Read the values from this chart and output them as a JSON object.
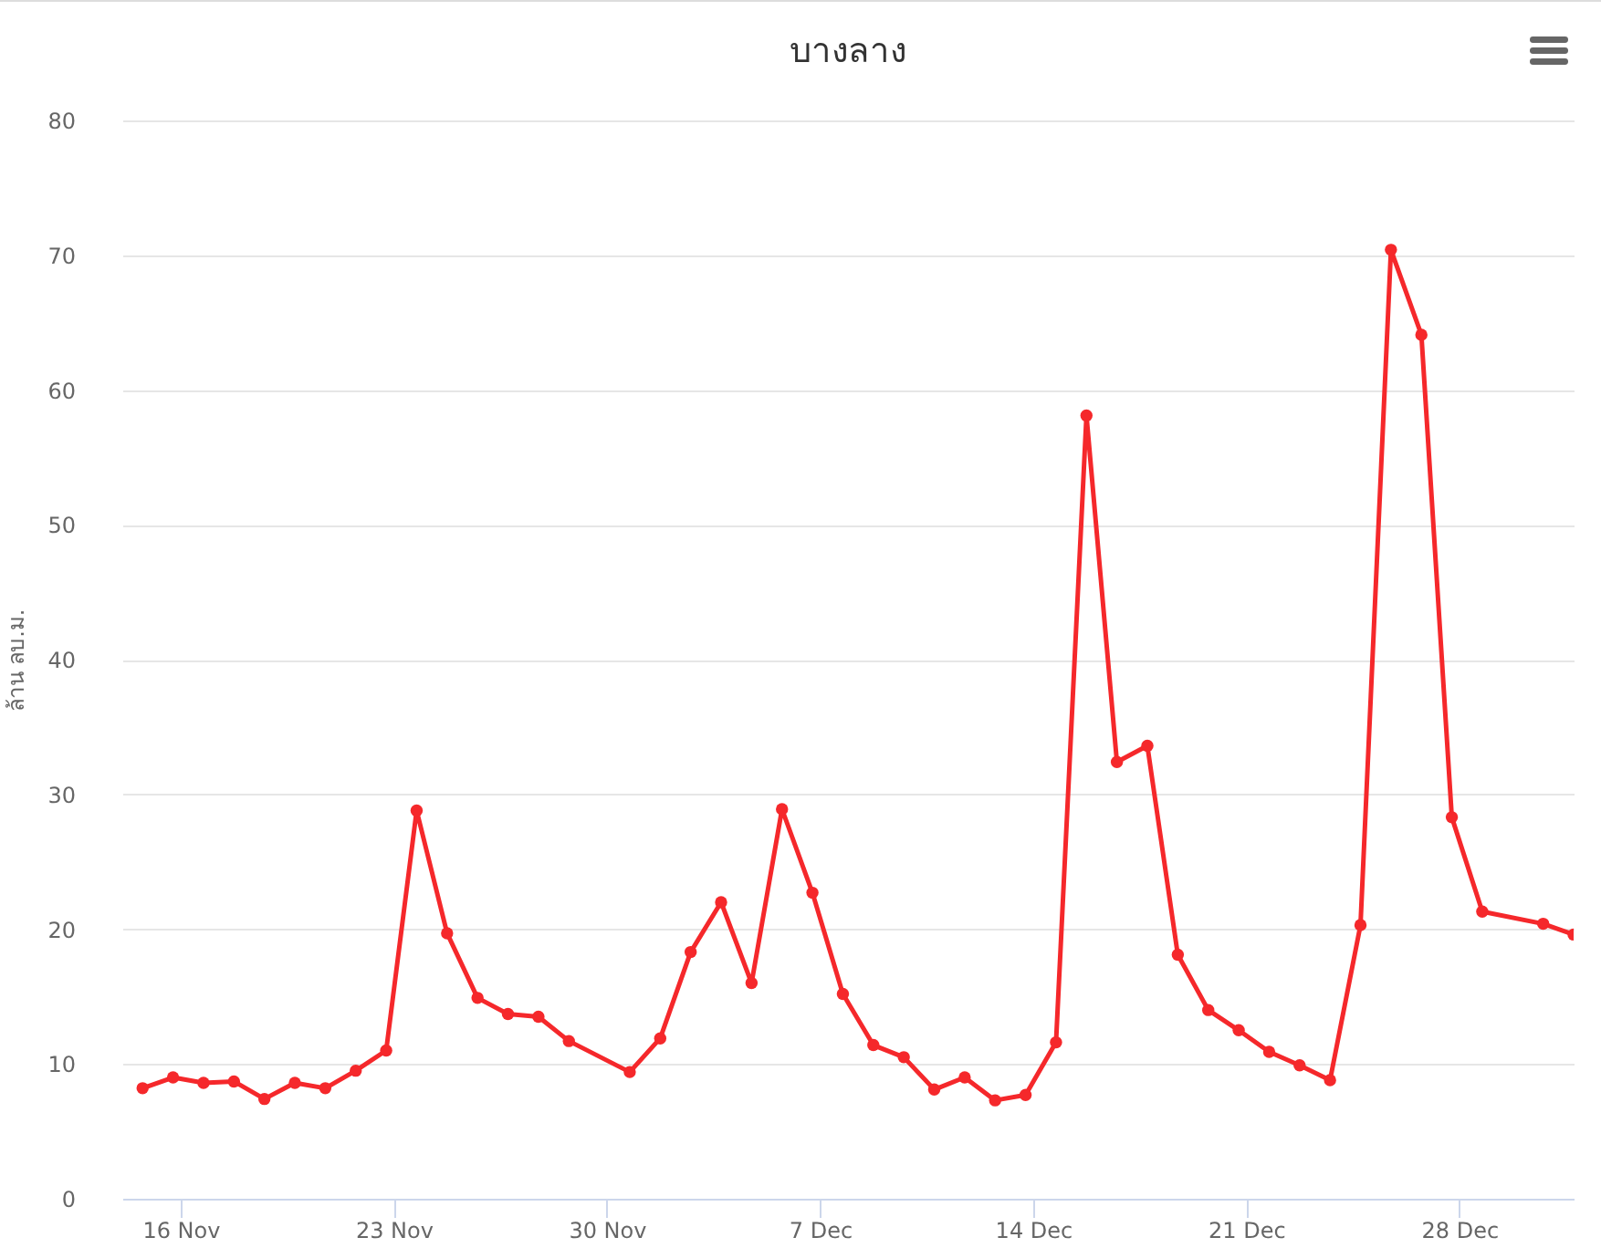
{
  "chart_data": {
    "type": "line",
    "title": "บางลาง",
    "ylabel": "ล้าน ลบ.ม.",
    "x": [
      "--11-14T18:00",
      "--11-15T18:00",
      "--11-16T18:00",
      "--11-17T18:00",
      "--11-18T18:00",
      "--11-19T18:00",
      "--11-20T18:00",
      "--11-21T18:00",
      "--11-22T18:00",
      "--11-23T18:00",
      "--11-24T18:00",
      "--11-25T18:00",
      "--11-26T18:00",
      "--11-27T18:00",
      "--11-28T18:00",
      "--11-30T18:00",
      "--12-01T18:00",
      "--12-02T18:00",
      "--12-03T18:00",
      "--12-04T18:00",
      "--12-05T18:00",
      "--12-06T18:00",
      "--12-07T18:00",
      "--12-08T18:00",
      "--12-09T18:00",
      "--12-10T18:00",
      "--12-11T18:00",
      "--12-12T18:00",
      "--12-13T18:00",
      "--12-14T18:00",
      "--12-15T18:00",
      "--12-16T18:00",
      "--12-17T18:00",
      "--12-18T18:00",
      "--12-19T18:00",
      "--12-20T18:00",
      "--12-21T18:00",
      "--12-22T18:00",
      "--12-23T18:00",
      "--12-24T18:00",
      "--12-25T18:00",
      "--12-26T18:00",
      "--12-27T18:00",
      "--12-28T18:00",
      "--12-30T18:00",
      "--12-31T18:00"
    ],
    "series": [
      {
        "color": "#f5282b",
        "values": [
          8.2,
          9.0,
          8.6,
          8.7,
          7.4,
          8.6,
          8.2,
          9.5,
          11.0,
          28.8,
          19.7,
          14.9,
          13.7,
          13.5,
          11.7,
          9.4,
          11.9,
          18.3,
          22.0,
          16.0,
          28.9,
          22.7,
          15.2,
          11.4,
          10.5,
          8.1,
          9.0,
          7.3,
          7.7,
          11.6,
          58.1,
          32.4,
          33.6,
          18.1,
          14.0,
          12.5,
          10.9,
          9.9,
          8.8,
          20.3,
          70.4,
          64.1,
          28.3,
          21.3,
          20.4,
          19.6
        ]
      }
    ],
    "xlim": [
      "--11-14T02:00",
      "--12-31T18:00"
    ],
    "xticks": [
      {
        "value": "--11-16",
        "label": "16 Nov"
      },
      {
        "value": "--11-23",
        "label": "23 Nov"
      },
      {
        "value": "--11-30",
        "label": "30 Nov"
      },
      {
        "value": "--12-07",
        "label": "7 Dec"
      },
      {
        "value": "--12-14",
        "label": "14 Dec"
      },
      {
        "value": "--12-21",
        "label": "21 Dec"
      },
      {
        "value": "--12-28",
        "label": "28 Dec"
      }
    ],
    "ylim": [
      0,
      80
    ],
    "yticks": [
      0,
      10,
      20,
      30,
      40,
      50,
      60,
      70,
      80
    ],
    "grid": "y",
    "marker": "circle",
    "line_style": "solid"
  }
}
